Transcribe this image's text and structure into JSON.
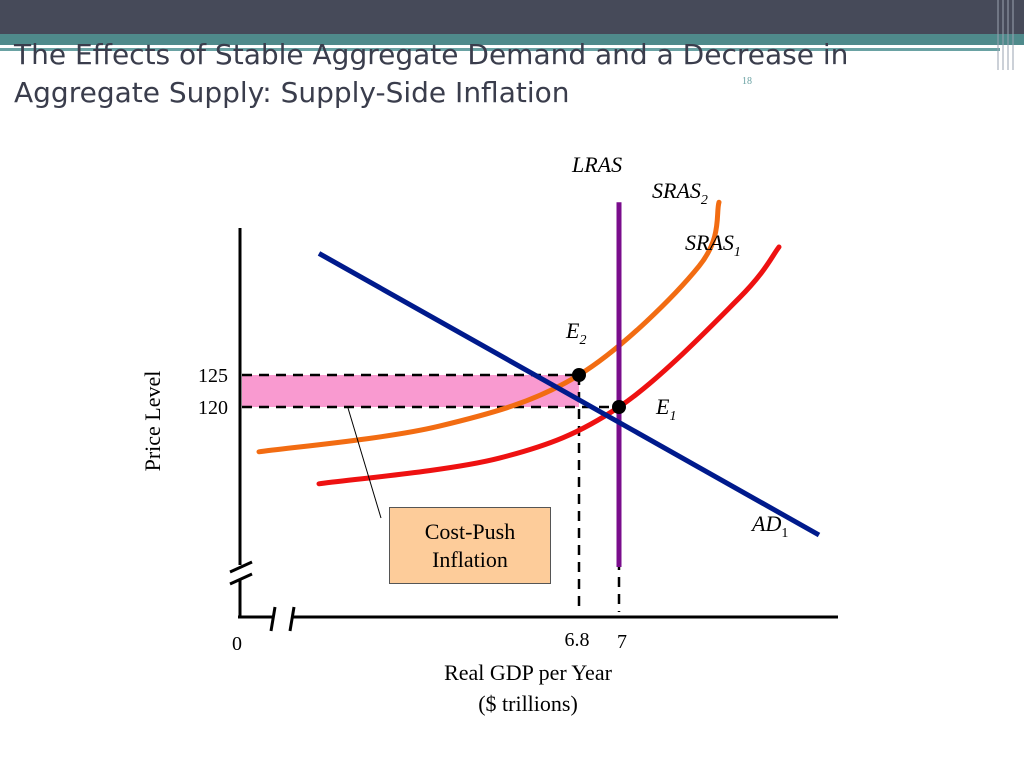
{
  "slide": {
    "title_line1": "The Effects of Stable Aggregate Demand and a Decrease in",
    "title_line2": "Aggregate Supply: Supply-Side Inflation",
    "slide_number": "18"
  },
  "colors": {
    "header_dark": "#464a59",
    "header_teal": "#4f8a8b",
    "ad": "#001a8c",
    "lras": "#7a0d8c",
    "sras1": "#ee1111",
    "sras2": "#f26c12",
    "inflation_band": "#f99ad0",
    "callout_fill": "#fdcc9a"
  },
  "chart_data": {
    "type": "line",
    "xlabel_line1": "Real GDP per Year",
    "xlabel_line2": "($ trillions)",
    "ylabel": "Price Level",
    "origin_label": "0",
    "x_ticks": [
      {
        "value": 6.8,
        "label": "6.8"
      },
      {
        "value": 7,
        "label": "7"
      }
    ],
    "y_ticks": [
      {
        "value": 125,
        "label": "125"
      },
      {
        "value": 120,
        "label": "120"
      }
    ],
    "series": [
      {
        "name": "AD",
        "sub": "1",
        "shape": "linear",
        "points": [
          [
            5.5,
            144
          ],
          [
            8.0,
            100
          ]
        ]
      },
      {
        "name": "LRAS",
        "sub": "",
        "shape": "vertical",
        "points": [
          [
            7.0,
            152
          ],
          [
            7.0,
            95
          ]
        ]
      },
      {
        "name": "SRAS",
        "sub": "2",
        "shape": "convex",
        "points": [
          [
            5.2,
            113
          ],
          [
            6.1,
            117
          ],
          [
            6.8,
            125
          ],
          [
            7.4,
            142
          ],
          [
            7.5,
            152
          ]
        ]
      },
      {
        "name": "SRAS",
        "sub": "1",
        "shape": "convex",
        "points": [
          [
            5.5,
            108
          ],
          [
            6.4,
            112
          ],
          [
            7.0,
            120
          ],
          [
            7.6,
            137
          ],
          [
            7.8,
            145
          ]
        ]
      }
    ],
    "equilibria": [
      {
        "name": "E",
        "sub": "2",
        "x": 6.8,
        "y": 125
      },
      {
        "name": "E",
        "sub": "1",
        "x": 7.0,
        "y": 120
      }
    ],
    "shaded_band": {
      "y_from": 120,
      "y_to": 125
    },
    "annotation_line1": "Cost-Push",
    "annotation_line2": "Inflation"
  }
}
